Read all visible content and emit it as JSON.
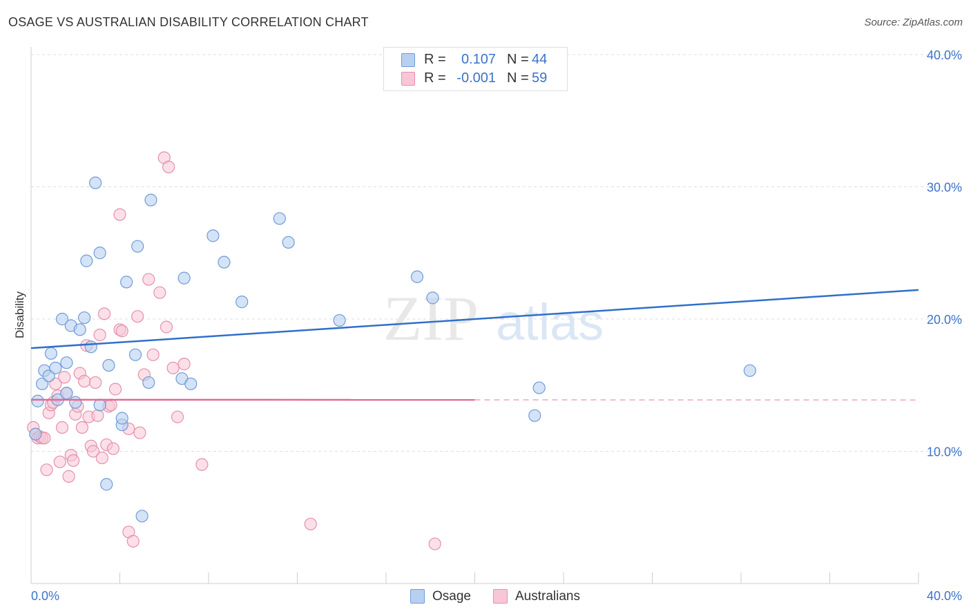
{
  "header": {
    "title": "OSAGE VS AUSTRALIAN DISABILITY CORRELATION CHART",
    "source": "Source: ZipAtlas.com"
  },
  "watermark": {
    "zip": "ZIP",
    "atlas": "atlas"
  },
  "stats": {
    "osage": {
      "r_label": "R =",
      "r_value": "0.107",
      "n_label": "N =",
      "n_value": "44"
    },
    "australians": {
      "r_label": "R =",
      "r_value": "-0.001",
      "n_label": "N =",
      "n_value": "59"
    }
  },
  "legend": {
    "osage": "Osage",
    "australians": "Australians"
  },
  "colors": {
    "osage_fill": "#b8d0f0",
    "osage_stroke": "#6f9bd8",
    "osage_line": "#2f6fca",
    "aus_fill": "#f8c6d6",
    "aus_stroke": "#e58fab",
    "aus_line": "#e06a94",
    "axis_label": "#3b73c9",
    "grid": "#dddddd"
  },
  "chart_data": {
    "type": "scatter",
    "title": "OSAGE VS AUSTRALIAN DISABILITY CORRELATION CHART",
    "xlabel": "",
    "ylabel": "Disability",
    "xlim": [
      0,
      40
    ],
    "ylim": [
      0,
      40
    ],
    "x_tick_labels": [
      "0.0%",
      "40.0%"
    ],
    "y_ticks": [
      {
        "value": 10,
        "label": "10.0%"
      },
      {
        "value": 20,
        "label": "20.0%"
      },
      {
        "value": 30,
        "label": "30.0%"
      },
      {
        "value": 40,
        "label": "40.0%"
      }
    ],
    "series": [
      {
        "name": "Osage",
        "r": 0.107,
        "n": 44,
        "trend": {
          "x": [
            0,
            40
          ],
          "y": [
            17.8,
            22.2
          ],
          "dashed_from": null
        },
        "points": [
          [
            0.3,
            13.8
          ],
          [
            0.5,
            15.1
          ],
          [
            0.6,
            16.1
          ],
          [
            0.8,
            15.7
          ],
          [
            0.9,
            17.4
          ],
          [
            1.1,
            16.3
          ],
          [
            1.2,
            13.9
          ],
          [
            1.4,
            20.0
          ],
          [
            1.6,
            16.7
          ],
          [
            1.6,
            14.4
          ],
          [
            1.8,
            19.5
          ],
          [
            2.0,
            13.7
          ],
          [
            2.2,
            19.2
          ],
          [
            2.4,
            20.1
          ],
          [
            2.5,
            24.4
          ],
          [
            2.7,
            17.9
          ],
          [
            2.9,
            30.3
          ],
          [
            3.1,
            13.5
          ],
          [
            3.1,
            25.0
          ],
          [
            3.5,
            16.5
          ],
          [
            3.4,
            7.5
          ],
          [
            4.1,
            12.0
          ],
          [
            4.1,
            12.5
          ],
          [
            4.3,
            22.8
          ],
          [
            4.7,
            17.3
          ],
          [
            4.8,
            25.5
          ],
          [
            5.0,
            5.1
          ],
          [
            5.3,
            15.2
          ],
          [
            5.4,
            29.0
          ],
          [
            6.8,
            15.5
          ],
          [
            6.9,
            23.1
          ],
          [
            7.2,
            15.1
          ],
          [
            8.2,
            26.3
          ],
          [
            8.7,
            24.3
          ],
          [
            9.5,
            21.3
          ],
          [
            11.2,
            27.6
          ],
          [
            11.6,
            25.8
          ],
          [
            13.9,
            19.9
          ],
          [
            17.4,
            23.2
          ],
          [
            18.1,
            21.6
          ],
          [
            22.9,
            14.8
          ],
          [
            22.7,
            12.7
          ],
          [
            32.4,
            16.1
          ],
          [
            0.2,
            11.3
          ]
        ]
      },
      {
        "name": "Australians",
        "r": -0.001,
        "n": 59,
        "trend": {
          "x": [
            0,
            40
          ],
          "y": [
            13.9,
            13.88
          ],
          "dashed_from": 20
        },
        "points": [
          [
            0.1,
            11.8
          ],
          [
            0.2,
            11.3
          ],
          [
            0.3,
            11.0
          ],
          [
            0.4,
            11.1
          ],
          [
            0.5,
            11.0
          ],
          [
            0.6,
            11.0
          ],
          [
            0.7,
            8.6
          ],
          [
            0.8,
            12.9
          ],
          [
            0.9,
            13.5
          ],
          [
            1.0,
            13.7
          ],
          [
            1.1,
            15.1
          ],
          [
            1.2,
            14.2
          ],
          [
            1.3,
            9.2
          ],
          [
            1.4,
            11.8
          ],
          [
            1.5,
            15.6
          ],
          [
            1.6,
            14.4
          ],
          [
            1.7,
            8.1
          ],
          [
            1.8,
            9.7
          ],
          [
            1.9,
            9.3
          ],
          [
            2.0,
            12.8
          ],
          [
            2.1,
            13.4
          ],
          [
            2.2,
            15.9
          ],
          [
            2.3,
            11.8
          ],
          [
            2.4,
            15.3
          ],
          [
            2.5,
            18.0
          ],
          [
            2.6,
            12.6
          ],
          [
            2.7,
            10.4
          ],
          [
            2.8,
            10.0
          ],
          [
            2.9,
            15.2
          ],
          [
            3.0,
            12.7
          ],
          [
            3.1,
            18.8
          ],
          [
            3.2,
            9.5
          ],
          [
            3.3,
            20.4
          ],
          [
            3.4,
            10.5
          ],
          [
            3.5,
            13.4
          ],
          [
            3.6,
            13.5
          ],
          [
            3.7,
            10.2
          ],
          [
            3.8,
            14.7
          ],
          [
            4.0,
            19.2
          ],
          [
            4.1,
            19.1
          ],
          [
            4.0,
            27.9
          ],
          [
            4.4,
            11.7
          ],
          [
            4.4,
            3.9
          ],
          [
            4.6,
            3.2
          ],
          [
            4.8,
            20.2
          ],
          [
            4.9,
            11.4
          ],
          [
            5.1,
            15.8
          ],
          [
            5.3,
            23.0
          ],
          [
            5.5,
            17.3
          ],
          [
            5.8,
            22.0
          ],
          [
            6.0,
            32.2
          ],
          [
            6.1,
            19.4
          ],
          [
            6.2,
            31.5
          ],
          [
            6.4,
            16.3
          ],
          [
            6.6,
            12.6
          ],
          [
            6.9,
            16.6
          ],
          [
            7.7,
            9.0
          ],
          [
            12.6,
            4.5
          ],
          [
            18.2,
            3.0
          ]
        ]
      }
    ]
  }
}
